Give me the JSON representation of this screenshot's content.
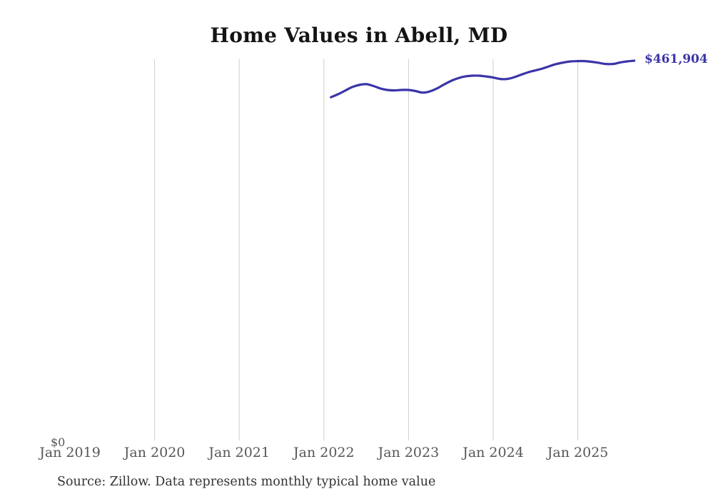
{
  "chart": {
    "title": "Home Values in Abell, MD",
    "y_zero_label": "$0",
    "latest_value_label": "$461,904",
    "source": "Source: Zillow. Data represents monthly typical home value"
  },
  "colors": {
    "line": "#3b35a8",
    "latest_value_label": "#3b35a8",
    "gridline": "#cdcdcd",
    "axis_text": "#55565a",
    "title_text": "#141414",
    "source_text": "#333333",
    "background": "#ffffff"
  },
  "chart_data": {
    "type": "line",
    "title": "Home Values in Abell, MD",
    "series_name": "Monthly typical home value (Zillow)",
    "x_tick_labels": [
      "Jan 2019",
      "Jan 2020",
      "Jan 2021",
      "Jan 2022",
      "Jan 2023",
      "Jan 2024",
      "Jan 2025"
    ],
    "x_axis_range": [
      "Jan 2019",
      "Sep 2025"
    ],
    "ylim": [
      0,
      461904
    ],
    "grid": "vertical-yearly",
    "legend": "none",
    "annotation_last_value": "$461,904",
    "x": [
      "2022-02",
      "2022-03",
      "2022-04",
      "2022-05",
      "2022-06",
      "2022-07",
      "2022-08",
      "2022-09",
      "2022-10",
      "2022-11",
      "2022-12",
      "2023-01",
      "2023-02",
      "2023-03",
      "2023-04",
      "2023-05",
      "2023-06",
      "2023-07",
      "2023-08",
      "2023-09",
      "2023-10",
      "2023-11",
      "2023-12",
      "2024-01",
      "2024-02",
      "2024-03",
      "2024-04",
      "2024-05",
      "2024-06",
      "2024-07",
      "2024-08",
      "2024-09",
      "2024-10",
      "2024-11",
      "2024-12",
      "2025-01",
      "2025-02",
      "2025-03",
      "2025-04",
      "2025-05",
      "2025-06",
      "2025-07",
      "2025-08",
      "2025-09"
    ],
    "values": [
      417400,
      421000,
      425300,
      429700,
      432300,
      433300,
      431100,
      428100,
      426200,
      425700,
      426200,
      426200,
      424900,
      423000,
      424400,
      427900,
      432700,
      437100,
      440500,
      442700,
      443600,
      443600,
      442700,
      441400,
      439600,
      439600,
      441800,
      444900,
      447900,
      450100,
      452300,
      455300,
      457900,
      459700,
      461000,
      461400,
      461400,
      460500,
      459200,
      457900,
      457900,
      459700,
      461000,
      461904
    ],
    "source": "Source: Zillow. Data represents monthly typical home value"
  }
}
